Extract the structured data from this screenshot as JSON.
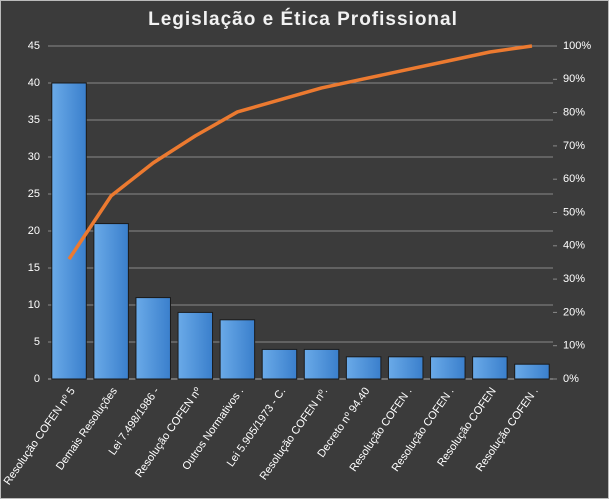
{
  "chart_data": {
    "type": "pareto",
    "title": "Legislação  e Ética Profissional",
    "categories": [
      "Resolução COFEN nº 5",
      "Demais Resoluções",
      "Lei 7.498/1986 -",
      "Resolução COFEN nº",
      "Outros Normativos .",
      "Lei 5.905/1973 - C.",
      "Resolução COFEN nº.",
      "Decreto nº 94.40",
      "Resolução COFEN .",
      "Resolução COFEN .",
      "Resolução COFEN",
      "Resolução COFEN ."
    ],
    "series": [
      {
        "type": "bar",
        "color": "#4a8fd8",
        "values": [
          40,
          21,
          11,
          9,
          8,
          4,
          4,
          3,
          3,
          3,
          3,
          2
        ]
      },
      {
        "type": "line",
        "axis": "y2",
        "color": "#ec7a30",
        "values": [
          36.0,
          55.0,
          64.9,
          73.0,
          80.2,
          83.8,
          87.4,
          90.1,
          92.8,
          95.5,
          98.2,
          100
        ]
      }
    ],
    "ylim": [
      0,
      45
    ],
    "yticks": [
      0,
      5,
      10,
      15,
      20,
      25,
      30,
      35,
      40,
      45
    ],
    "y2lim": [
      0,
      100
    ],
    "y2ticks": [
      {
        "value": 0,
        "label": "0%"
      },
      {
        "value": 10,
        "label": "10%"
      },
      {
        "value": 20,
        "label": "20%"
      },
      {
        "value": 30,
        "label": "30%"
      },
      {
        "value": 40,
        "label": "40%"
      },
      {
        "value": 50,
        "label": "50%"
      },
      {
        "value": 60,
        "label": "60%"
      },
      {
        "value": 70,
        "label": "70%"
      },
      {
        "value": 80,
        "label": "80%"
      },
      {
        "value": 90,
        "label": "90%"
      },
      {
        "value": 100,
        "label": "100%"
      }
    ],
    "grid": true
  }
}
